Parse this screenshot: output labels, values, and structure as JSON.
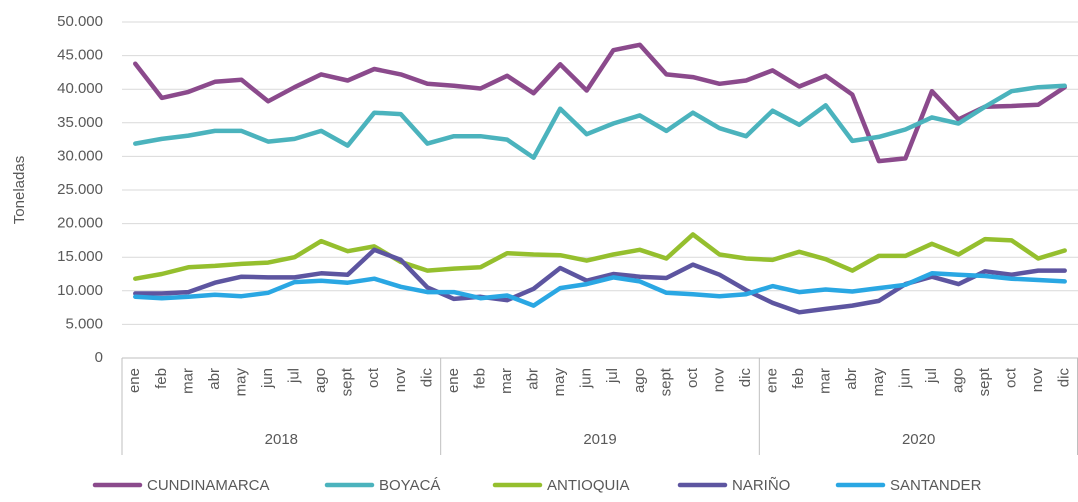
{
  "chart_data": {
    "type": "line",
    "y_label": "Toneladas",
    "categories": [
      "ene",
      "feb",
      "mar",
      "abr",
      "may",
      "jun",
      "jul",
      "ago",
      "sept",
      "oct",
      "nov",
      "dic",
      "ene",
      "feb",
      "mar",
      "abr",
      "may",
      "jun",
      "jul",
      "ago",
      "sept",
      "oct",
      "nov",
      "dic",
      "ene",
      "feb",
      "mar",
      "abr",
      "may",
      "jun",
      "jul",
      "ago",
      "sept",
      "oct",
      "nov",
      "dic"
    ],
    "years": [
      "2018",
      "2019",
      "2020"
    ],
    "ylim": [
      0,
      50000
    ],
    "yticks": [
      0,
      {
        "value": 5000,
        "label": "5.000"
      },
      {
        "value": 10000,
        "label": "10.000"
      },
      {
        "value": 15000,
        "label": "15.000"
      },
      {
        "value": 20000,
        "label": "20.000"
      },
      {
        "value": 25000,
        "label": "25.000"
      },
      {
        "value": 30000,
        "label": "30.000"
      },
      {
        "value": 35000,
        "label": "35.000"
      },
      {
        "value": 40000,
        "label": "40.000"
      },
      {
        "value": 45000,
        "label": "45.000"
      },
      {
        "value": 50000,
        "label": "50.000"
      }
    ],
    "grid": true,
    "legend": "bottom",
    "series": [
      {
        "name": "CUNDINAMARCA",
        "color": "#8b4a8c",
        "values": [
          43800,
          38700,
          39600,
          41100,
          41400,
          38200,
          40300,
          42200,
          41300,
          43000,
          42200,
          40800,
          40500,
          40100,
          42000,
          39400,
          43700,
          39800,
          45800,
          46600,
          42200,
          41800,
          40800,
          41300,
          42800,
          40400,
          42000,
          39200,
          29300,
          29700,
          39700,
          35500,
          37400,
          37500,
          37700,
          40300
        ]
      },
      {
        "name": "BOYACÁ",
        "color": "#4bb3bd",
        "values": [
          31900,
          32600,
          33100,
          33800,
          33800,
          32200,
          32600,
          33800,
          31600,
          36500,
          36300,
          31900,
          33000,
          33000,
          32500,
          29800,
          37100,
          33300,
          34900,
          36100,
          33800,
          36500,
          34200,
          33000,
          36800,
          34700,
          37600,
          32300,
          32900,
          34000,
          35800,
          34900,
          37400,
          39700,
          40300,
          40500
        ]
      },
      {
        "name": "ANTIOQUIA",
        "color": "#95bf2e",
        "values": [
          11800,
          12500,
          13500,
          13700,
          14000,
          14200,
          15000,
          17400,
          15900,
          16600,
          14300,
          13000,
          13300,
          13500,
          15600,
          15400,
          15300,
          14500,
          15400,
          16100,
          14800,
          18400,
          15400,
          14800,
          14600,
          15800,
          14700,
          13000,
          15200,
          15200,
          17000,
          15400,
          17700,
          17500,
          14800,
          16000
        ]
      },
      {
        "name": "NARIÑO",
        "color": "#5d55a0",
        "values": [
          9600,
          9600,
          9800,
          11200,
          12100,
          12000,
          12000,
          12600,
          12400,
          16100,
          14600,
          10500,
          8800,
          9100,
          8600,
          10300,
          13400,
          11500,
          12500,
          12100,
          11900,
          13900,
          12400,
          10100,
          8200,
          6800,
          7300,
          7800,
          8500,
          11000,
          12100,
          11000,
          12900,
          12400,
          13000,
          13000
        ]
      },
      {
        "name": "SANTANDER",
        "color": "#2aa7e3",
        "values": [
          9100,
          8900,
          9100,
          9400,
          9200,
          9700,
          11300,
          11500,
          11200,
          11800,
          10600,
          9800,
          9800,
          8900,
          9300,
          7800,
          10400,
          11000,
          12000,
          11400,
          9700,
          9500,
          9200,
          9500,
          10700,
          9800,
          10200,
          9900,
          10400,
          10900,
          12600,
          12400,
          12200,
          11800,
          11600,
          11400
        ]
      }
    ]
  }
}
